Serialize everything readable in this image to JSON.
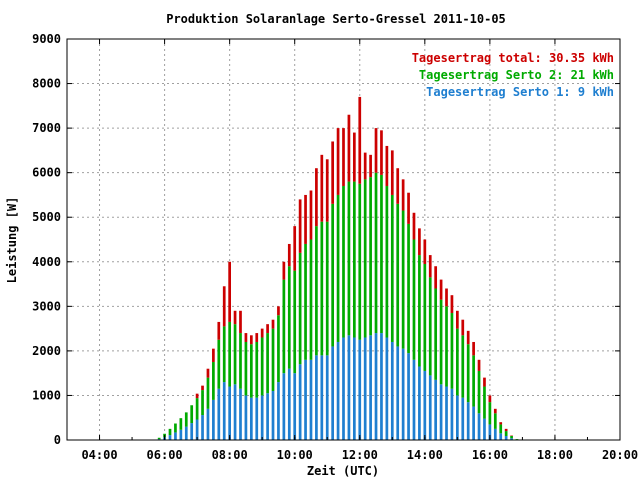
{
  "chart_data": {
    "type": "bar",
    "title": "Produktion Solaranlage Serto-Gressel 2011-10-05",
    "xlabel": "Zeit (UTC)",
    "ylabel": "Leistung [W]",
    "ylim": [
      0,
      9000
    ],
    "xlim": [
      "03:00",
      "20:00"
    ],
    "grid": true,
    "stacked": true,
    "y_ticks": [
      "0",
      "1000",
      "2000",
      "3000",
      "4000",
      "5000",
      "6000",
      "7000",
      "8000",
      "9000"
    ],
    "x_ticks": [
      "04:00",
      "06:00",
      "08:00",
      "10:00",
      "12:00",
      "14:00",
      "16:00",
      "18:00",
      "20:00"
    ],
    "legend_position": "top-right",
    "legend": [
      {
        "label": "Tagesertrag total: 30.35 kWh",
        "color": "#cc0000"
      },
      {
        "label": "Tagesertrag Serto 2: 21 kWh",
        "color": "#00aa00"
      },
      {
        "label": "Tagesertrag Serto 1: 9 kWh",
        "color": "#1f7fd0"
      }
    ],
    "x": [
      "05:50",
      "06:00",
      "06:10",
      "06:20",
      "06:30",
      "06:40",
      "06:50",
      "07:00",
      "07:10",
      "07:20",
      "07:30",
      "07:40",
      "07:50",
      "08:00",
      "08:10",
      "08:20",
      "08:30",
      "08:40",
      "08:50",
      "09:00",
      "09:10",
      "09:20",
      "09:30",
      "09:40",
      "09:50",
      "10:00",
      "10:10",
      "10:20",
      "10:30",
      "10:40",
      "10:50",
      "11:00",
      "11:10",
      "11:20",
      "11:30",
      "11:40",
      "11:50",
      "12:00",
      "12:10",
      "12:20",
      "12:30",
      "12:40",
      "12:50",
      "13:00",
      "13:10",
      "13:20",
      "13:30",
      "13:40",
      "13:50",
      "14:00",
      "14:10",
      "14:20",
      "14:30",
      "14:40",
      "14:50",
      "15:00",
      "15:10",
      "15:20",
      "15:30",
      "15:40",
      "15:50",
      "16:00",
      "16:10",
      "16:20",
      "16:30",
      "16:40",
      "16:50"
    ],
    "series": [
      {
        "name": "Tagesertrag Serto 1: 9 kWh",
        "values": [
          20,
          60,
          110,
          170,
          230,
          300,
          380,
          460,
          560,
          700,
          900,
          1150,
          1300,
          1200,
          1250,
          1150,
          1000,
          950,
          950,
          1000,
          1050,
          1100,
          1300,
          1500,
          1600,
          1500,
          1700,
          1800,
          1800,
          1900,
          1900,
          1900,
          2100,
          2200,
          2300,
          2350,
          2300,
          2250,
          2300,
          2350,
          2400,
          2400,
          2300,
          2200,
          2100,
          2050,
          1950,
          1800,
          1650,
          1550,
          1450,
          1350,
          1250,
          1200,
          1150,
          1000,
          950,
          850,
          750,
          600,
          480,
          350,
          250,
          150,
          90,
          40,
          10
        ]
      },
      {
        "name": "Tagesertrag Serto 2: 21 kWh",
        "values": [
          30,
          80,
          140,
          200,
          260,
          320,
          400,
          480,
          560,
          700,
          850,
          1100,
          1250,
          1450,
          1350,
          1250,
          1200,
          1200,
          1250,
          1300,
          1350,
          1400,
          1500,
          2100,
          2300,
          2300,
          2500,
          2600,
          2700,
          2900,
          3000,
          3000,
          3200,
          3300,
          3400,
          3450,
          3500,
          3500,
          3550,
          3550,
          3600,
          3550,
          3400,
          3300,
          3200,
          3100,
          2900,
          2700,
          2500,
          2400,
          2200,
          2050,
          1900,
          1800,
          1700,
          1500,
          1400,
          1300,
          1150,
          950,
          720,
          500,
          350,
          200,
          110,
          50,
          10
        ]
      },
      {
        "name": "Tagesertrag total: 30.35 kWh",
        "values": [
          0,
          0,
          0,
          0,
          0,
          0,
          0,
          100,
          100,
          200,
          300,
          400,
          900,
          1350,
          300,
          500,
          200,
          200,
          200,
          200,
          200,
          200,
          200,
          400,
          500,
          1000,
          1200,
          1100,
          1100,
          1300,
          1500,
          1400,
          1400,
          1500,
          1300,
          1500,
          1100,
          1950,
          600,
          500,
          1000,
          1000,
          900,
          1000,
          800,
          700,
          700,
          600,
          600,
          550,
          500,
          500,
          450,
          400,
          400,
          400,
          350,
          300,
          300,
          250,
          200,
          150,
          100,
          50,
          50,
          10,
          0
        ]
      }
    ]
  }
}
